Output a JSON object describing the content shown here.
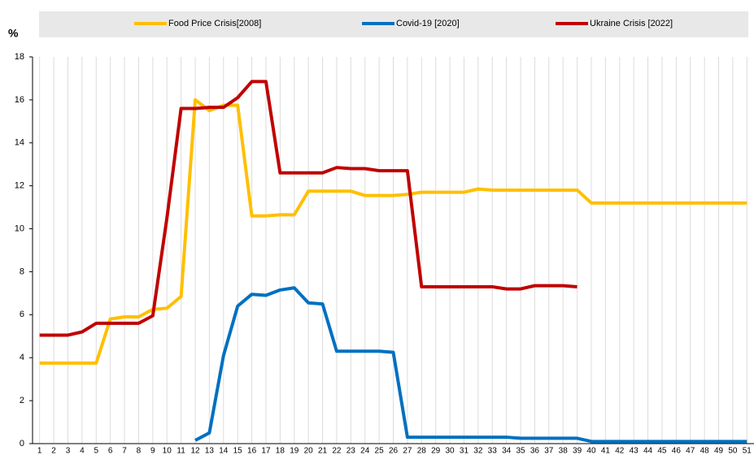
{
  "chart_data": {
    "type": "line",
    "y_label": "%",
    "categories": [
      "1",
      "2",
      "3",
      "4",
      "5",
      "6",
      "7",
      "8",
      "9",
      "10",
      "11",
      "12",
      "13",
      "14",
      "15",
      "16",
      "17",
      "18",
      "19",
      "20",
      "21",
      "22",
      "23",
      "24",
      "25",
      "26",
      "27",
      "28",
      "29",
      "30",
      "31",
      "32",
      "33",
      "34",
      "35",
      "36",
      "37",
      "38",
      "39",
      "40",
      "41",
      "42",
      "43",
      "44",
      "45",
      "46",
      "47",
      "48",
      "49",
      "50",
      "51"
    ],
    "series": [
      {
        "name": "Food Price Crisis[2008]",
        "color": "#ffbf00",
        "values": [
          3.75,
          3.75,
          3.75,
          3.75,
          3.75,
          5.8,
          5.9,
          5.9,
          6.25,
          6.3,
          6.85,
          16.0,
          15.5,
          15.75,
          15.75,
          10.6,
          10.6,
          10.65,
          10.65,
          11.75,
          11.75,
          11.75,
          11.75,
          11.55,
          11.55,
          11.55,
          11.6,
          11.7,
          11.7,
          11.7,
          11.7,
          11.85,
          11.8,
          11.8,
          11.8,
          11.8,
          11.8,
          11.8,
          11.8,
          11.2,
          11.2,
          11.2,
          11.2,
          11.2,
          11.2,
          11.2,
          11.2,
          11.2,
          11.2,
          11.2,
          11.2
        ]
      },
      {
        "name": "Covid-19 [2020]",
        "color": "#0070c0",
        "values": [
          null,
          null,
          null,
          null,
          null,
          null,
          null,
          null,
          null,
          null,
          null,
          0.15,
          0.5,
          4.1,
          6.4,
          6.95,
          6.9,
          7.15,
          7.25,
          6.55,
          6.5,
          4.3,
          4.3,
          4.3,
          4.3,
          4.25,
          0.3,
          0.3,
          0.3,
          0.3,
          0.3,
          0.3,
          0.3,
          0.3,
          0.25,
          0.25,
          0.25,
          0.25,
          0.25,
          0.1,
          0.1,
          0.1,
          0.1,
          0.1,
          0.1,
          0.1,
          0.1,
          0.1,
          0.1,
          0.1,
          0.1
        ]
      },
      {
        "name": "Ukraine Crisis [2022]",
        "color": "#c00000",
        "values": [
          5.05,
          5.05,
          5.05,
          5.2,
          5.6,
          5.6,
          5.6,
          5.6,
          5.95,
          10.5,
          15.6,
          15.6,
          15.65,
          15.65,
          16.1,
          16.85,
          16.85,
          12.6,
          12.6,
          12.6,
          12.6,
          12.85,
          12.8,
          12.8,
          12.7,
          12.7,
          12.7,
          7.3,
          7.3,
          7.3,
          7.3,
          7.3,
          7.3,
          7.2,
          7.2,
          7.35,
          7.35,
          7.35,
          7.3,
          null,
          null,
          null,
          null,
          null,
          null,
          null,
          null,
          null,
          null,
          null,
          null
        ]
      }
    ],
    "ylim": [
      0,
      18
    ],
    "yticks": [
      0,
      2,
      4,
      6,
      8,
      10,
      12,
      14,
      16,
      18
    ],
    "grid": true
  }
}
